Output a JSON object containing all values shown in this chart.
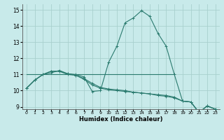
{
  "xlabel": "Humidex (Indice chaleur)",
  "bg_color": "#c8eaea",
  "grid_color": "#a8d0ce",
  "line_color": "#2a7a6e",
  "xlim": [
    -0.5,
    23.5
  ],
  "ylim": [
    8.85,
    15.35
  ],
  "xticks": [
    0,
    1,
    2,
    3,
    4,
    5,
    6,
    7,
    8,
    9,
    10,
    11,
    12,
    13,
    14,
    15,
    16,
    17,
    18,
    19,
    20,
    21,
    22,
    23
  ],
  "yticks": [
    9,
    10,
    11,
    12,
    13,
    14,
    15
  ],
  "curve1_x": [
    0,
    1,
    2,
    3,
    4,
    5,
    6,
    7,
    8,
    9,
    10,
    11,
    12,
    13,
    14,
    15,
    16,
    17,
    18,
    19,
    20,
    21,
    22,
    23
  ],
  "curve1_y": [
    10.15,
    10.65,
    11.0,
    11.1,
    11.25,
    11.05,
    11.0,
    10.85,
    9.95,
    10.0,
    11.75,
    12.75,
    14.2,
    14.5,
    14.95,
    14.6,
    13.55,
    12.75,
    11.0,
    9.35,
    9.3,
    8.65,
    9.05,
    8.85
  ],
  "curve2_x": [
    0,
    1,
    2,
    3,
    4,
    5,
    6,
    7,
    8,
    9,
    10,
    11,
    12,
    13,
    14,
    15,
    16,
    17,
    18,
    19,
    20,
    21,
    22,
    23
  ],
  "curve2_y": [
    10.15,
    10.65,
    11.0,
    11.2,
    11.2,
    11.05,
    10.95,
    10.75,
    10.45,
    10.2,
    10.1,
    10.05,
    10.0,
    9.9,
    9.85,
    9.8,
    9.75,
    9.7,
    9.6,
    9.35,
    9.3,
    8.65,
    9.05,
    8.85
  ],
  "curve3_x": [
    0,
    1,
    2,
    3,
    4,
    5,
    6,
    7,
    8,
    9,
    10,
    11,
    12,
    13,
    14,
    15,
    16,
    17,
    18,
    19,
    20,
    21,
    22,
    23
  ],
  "curve3_y": [
    10.15,
    10.65,
    11.0,
    11.2,
    11.2,
    11.0,
    10.95,
    10.7,
    10.35,
    10.15,
    10.05,
    10.0,
    9.95,
    9.9,
    9.85,
    9.8,
    9.7,
    9.65,
    9.55,
    9.35,
    9.3,
    8.65,
    9.05,
    8.85
  ],
  "hline_y": 11.0,
  "hline_x0": 0.0,
  "hline_x1": 18.0
}
